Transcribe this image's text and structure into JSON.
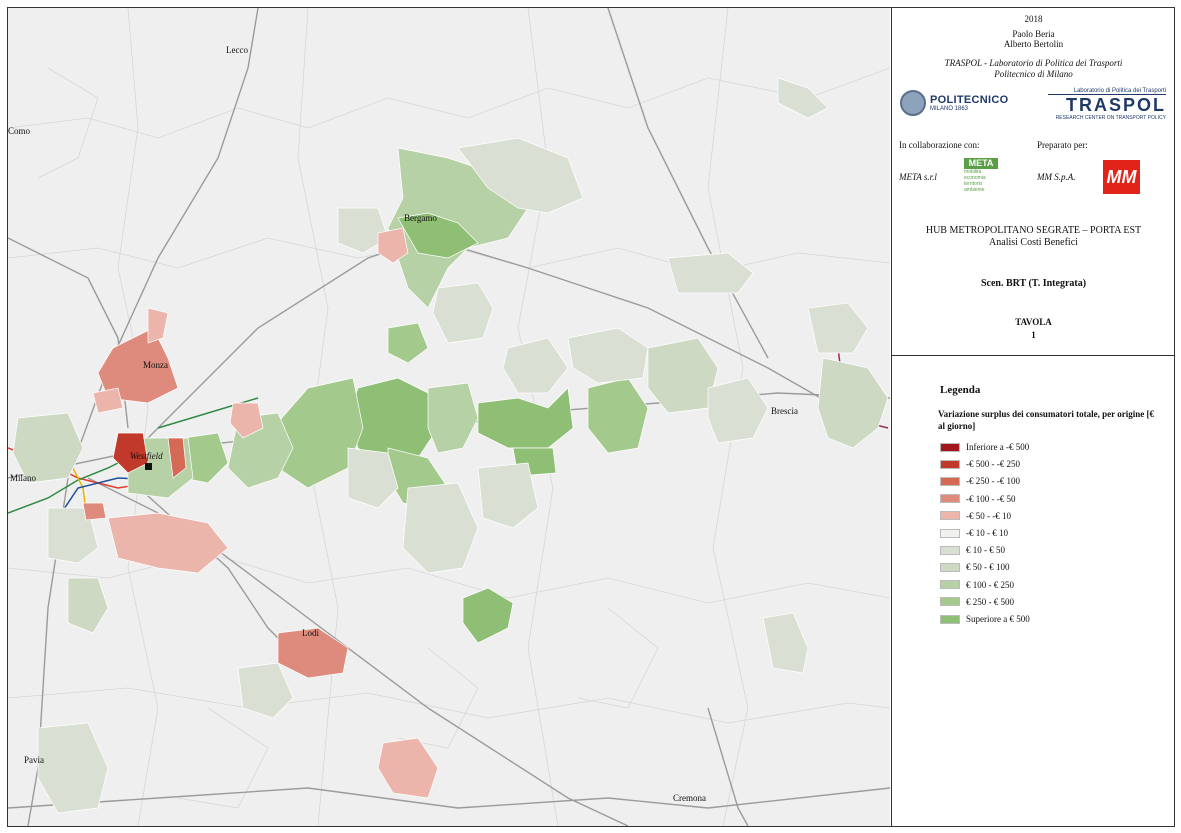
{
  "map": {
    "cities": [
      {
        "name": "Lecco"
      },
      {
        "name": "Como"
      },
      {
        "name": "Bergamo"
      },
      {
        "name": "Monza"
      },
      {
        "name": "Westfield"
      },
      {
        "name": "Milano"
      },
      {
        "name": "Brescia"
      },
      {
        "name": "Lodi"
      },
      {
        "name": "Pavia"
      },
      {
        "name": "Cremona"
      }
    ]
  },
  "title_block": {
    "year": "2018",
    "author1": "Paolo Beria",
    "author2": "Alberto Bertolin",
    "institution1": "TRASPOL - Laboratorio di Politica dei Trasporti",
    "institution2": "Politecnico di Milano",
    "poli_name": "POLITECNICO",
    "poli_sub": "MILANO 1863",
    "traspol_top": "Laboratorio di Politica dei Trasporti",
    "traspol_name": "TRASPOL",
    "traspol_sub": "RESEARCH CENTER ON TRANSPORT POLICY",
    "collab_label": "In collaborazione con:",
    "prepared_label": "Preparato per:",
    "collab_name": "META s.r.l",
    "prepared_name": "MM S.p.A.",
    "meta_logo": "META",
    "meta_sub": "mobilità economia territorio ambiente",
    "mm_logo": "MM",
    "project1": "HUB METROPOLITANO SEGRATE – PORTA EST",
    "project2": "Analisi Costi Benefici",
    "scenario": "Scen. BRT (T. Integrata)",
    "tavola_label": "TAVOLA",
    "tavola_num": "1"
  },
  "legend": {
    "title": "Legenda",
    "subtitle": "Variazione surplus dei consumatori totale, per origine [€ al giorno]",
    "items": [
      {
        "label": "Inferiore a -€ 500",
        "color": "#a3161c"
      },
      {
        "label": "-€ 500 - -€ 250",
        "color": "#c0392b"
      },
      {
        "label": "-€ 250 - -€ 100",
        "color": "#d46a55"
      },
      {
        "label": "-€ 100 - -€ 50",
        "color": "#de8a7c"
      },
      {
        "label": "-€ 50 - -€ 10",
        "color": "#ebb5ab"
      },
      {
        "label": "-€ 10 - € 10",
        "color": "#f1f1ef"
      },
      {
        "label": "€ 10 - € 50",
        "color": "#dadfd3"
      },
      {
        "label": "€ 50 - € 100",
        "color": "#cdd9c3"
      },
      {
        "label": "€ 100 - € 250",
        "color": "#b7d1a6"
      },
      {
        "label": "€ 250 - € 500",
        "color": "#a3c98d"
      },
      {
        "label": "Superiore a € 500",
        "color": "#8fbf74"
      }
    ]
  }
}
